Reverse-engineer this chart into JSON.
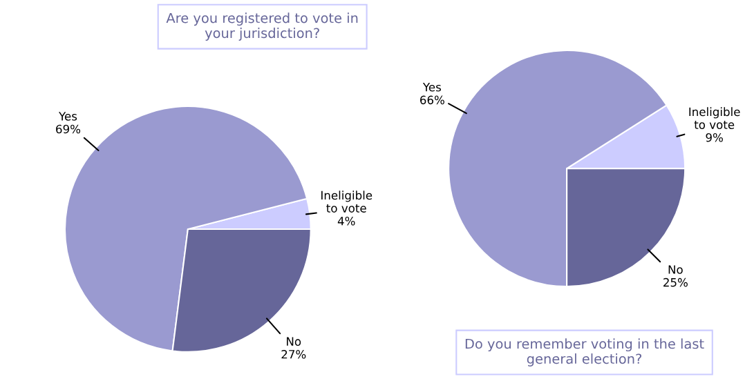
{
  "chart_data": [
    {
      "type": "pie",
      "title": "Are you registered to vote in\nyour jurisdiction?",
      "categories": [
        "Ineligible\nto vote",
        "Yes",
        "No"
      ],
      "values": [
        4,
        69,
        27
      ],
      "value_labels": [
        "4%",
        "69%",
        "27%"
      ],
      "colors": [
        "#ccccff",
        "#9a9ad0",
        "#666699"
      ]
    },
    {
      "type": "pie",
      "title": "Do you remember voting in the last\ngeneral election?",
      "categories": [
        "Ineligible\nto vote",
        "Yes",
        "No"
      ],
      "values": [
        9,
        66,
        25
      ],
      "value_labels": [
        "9%",
        "66%",
        "25%"
      ],
      "colors": [
        "#ccccff",
        "#9a9ad0",
        "#666699"
      ]
    }
  ]
}
